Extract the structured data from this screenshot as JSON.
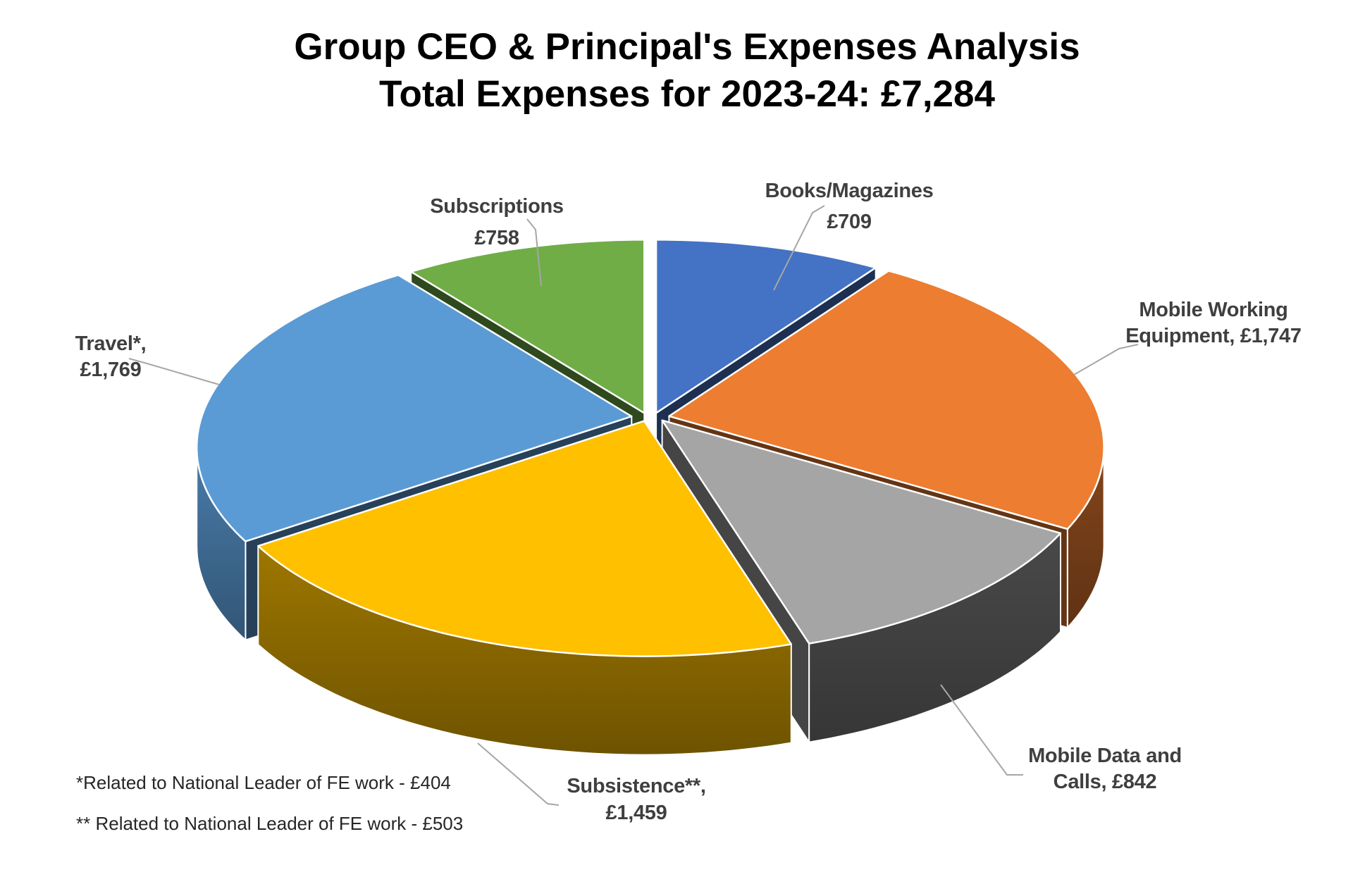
{
  "chart_data": {
    "type": "pie",
    "style": "3d-exploded",
    "title": "Group CEO & Principal's Expenses Analysis",
    "subtitle": "Total Expenses for 2023-24: £7,284",
    "total_value": 7284,
    "total_display": "£7,284",
    "period": "2023-24",
    "legend_position": "none",
    "background": "#FFFFFF",
    "label_color": "#3F3F3F",
    "leader_line_color": "#A6A6A6",
    "slices": [
      {
        "label": "Books/Magazines",
        "value": 709,
        "display": "£709",
        "line1": "Books/Magazines",
        "line2": "£709",
        "color": "#4472C4"
      },
      {
        "label": "Mobile Working Equipment",
        "value": 1747,
        "display": "£1,747",
        "line1": "Mobile Working",
        "line2": "Equipment, £1,747",
        "color": "#ED7D31"
      },
      {
        "label": "Mobile Data and Calls",
        "value": 842,
        "display": "£842",
        "line1": "Mobile Data and",
        "line2": "Calls, £842",
        "color": "#A5A5A5"
      },
      {
        "label": "Subsistence**",
        "value": 1459,
        "display": "£1,459",
        "line1": "Subsistence**,",
        "line2": "£1,459",
        "color": "#FFC000"
      },
      {
        "label": "Travel*",
        "value": 1769,
        "display": "£1,769",
        "line1": "Travel*,",
        "line2": "£1,769",
        "color": "#5B9BD5"
      },
      {
        "label": "Subscriptions",
        "value": 758,
        "display": "£758",
        "line1": "Subscriptions",
        "line2": "£758",
        "color": "#70AD47"
      }
    ],
    "footnotes": [
      "*Related to National Leader of FE work - £404",
      "** Related to National Leader of FE work - £503"
    ]
  }
}
